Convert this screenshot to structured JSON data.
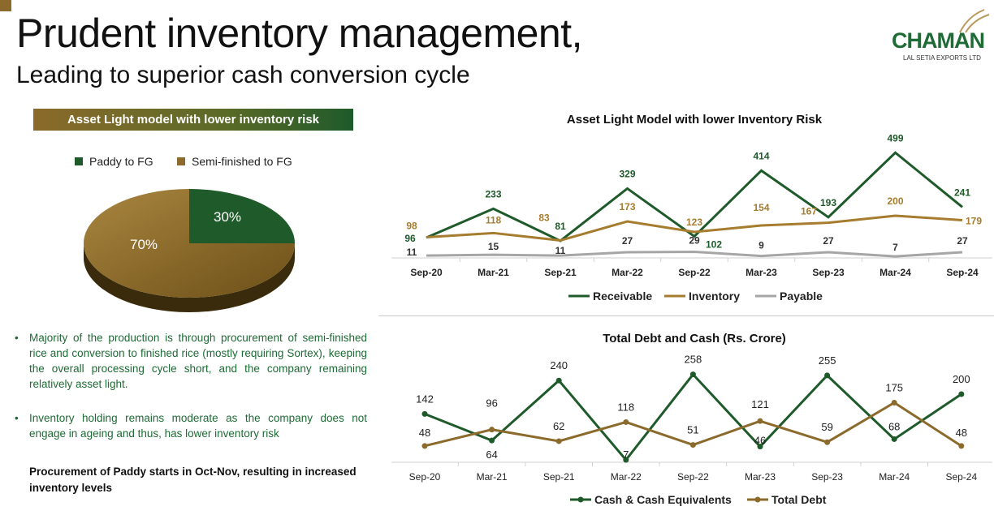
{
  "header": {
    "title": "Prudent inventory management,",
    "subtitle": "Leading to superior cash conversion cycle"
  },
  "logo": {
    "name": "CHAMAN",
    "tagline": "LAL SETIA EXPORTS LTD"
  },
  "left": {
    "banner": "Asset Light model with lower inventory risk",
    "pie": {
      "legend": [
        {
          "label": "Paddy to FG",
          "color": "#1e5a2a"
        },
        {
          "label": "Semi-finished to FG",
          "color": "#8b6a2b"
        }
      ],
      "slices": [
        {
          "label": "30%",
          "value": 30
        },
        {
          "label": "70%",
          "value": 70
        }
      ]
    },
    "bullets": [
      "Majority of the production is through procurement of semi-finished rice and conversion to finished rice (mostly requiring Sortex), keeping the overall processing cycle short, and the company remaining relatively asset light.",
      "Inventory holding remains moderate as the company does not engage in ageing  and thus, has lower inventory risk"
    ],
    "note": "Procurement of Paddy starts in Oct-Nov, resulting in increased inventory levels"
  },
  "chart_data": [
    {
      "type": "line",
      "title": "Asset Light Model with lower Inventory Risk",
      "categories": [
        "Sep-20",
        "Mar-21",
        "Sep-21",
        "Mar-22",
        "Sep-22",
        "Mar-23",
        "Sep-23",
        "Mar-24",
        "Sep-24"
      ],
      "series": [
        {
          "name": "Receivable",
          "color": "#1e5a2a",
          "values": [
            96,
            233,
            81,
            329,
            102,
            414,
            193,
            499,
            241
          ]
        },
        {
          "name": "Inventory",
          "color": "#a67c2e",
          "values": [
            98,
            118,
            83,
            173,
            123,
            154,
            167,
            200,
            179
          ]
        },
        {
          "name": "Payable",
          "color": "#a6a6a6",
          "values": [
            11,
            15,
            11,
            27,
            29,
            9,
            27,
            7,
            27
          ]
        }
      ],
      "legend": "bottom"
    },
    {
      "type": "line",
      "title": "Total Debt and Cash (Rs. Crore)",
      "categories": [
        "Sep-20",
        "Mar-21",
        "Sep-21",
        "Mar-22",
        "Sep-22",
        "Mar-23",
        "Sep-23",
        "Mar-24",
        "Sep-24"
      ],
      "series": [
        {
          "name": "Cash & Cash Equivalents",
          "color": "#1e5a2a",
          "values": [
            142,
            64,
            240,
            7,
            258,
            46,
            255,
            68,
            200
          ]
        },
        {
          "name": "Total Debt",
          "color": "#8b6a2b",
          "values": [
            48,
            96,
            62,
            118,
            51,
            121,
            59,
            175,
            48
          ]
        }
      ],
      "legend": "bottom"
    }
  ]
}
